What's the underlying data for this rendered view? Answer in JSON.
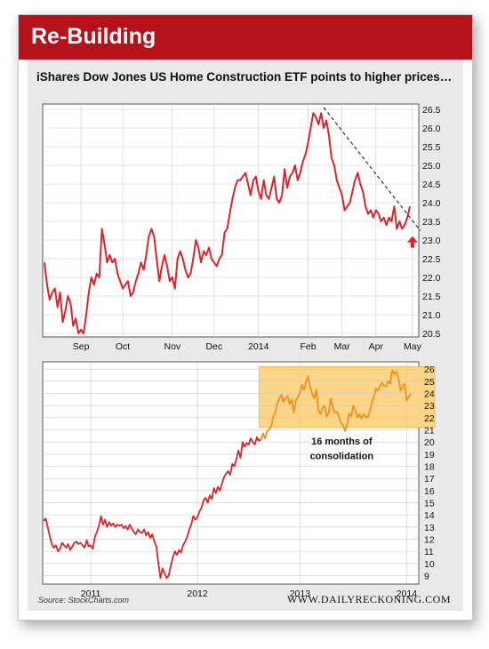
{
  "header": {
    "title": "Re-Building"
  },
  "subtitle": "iShares Dow Jones US Home Construction ETF points to higher prices…",
  "source": "Source: StockCharts.com",
  "site": "WWW.DAILYRECKONING.COM",
  "colors": {
    "header": "#b5121b",
    "line_top": "#e0222a",
    "line_bottom": "#e0222a",
    "line_highlight": "#f0901e",
    "highlight_fill": "#fcd587",
    "trend": "#1a3a5c",
    "arrow": "#e0222a"
  },
  "chart_data": [
    {
      "type": "line",
      "title": "",
      "ylim": [
        20.5,
        26.5
      ],
      "y_ticks": [
        "20.5",
        "21.0",
        "21.5",
        "22.0",
        "22.5",
        "23.0",
        "23.5",
        "24.0",
        "24.5",
        "25.0",
        "25.5",
        "26.0",
        "26.5"
      ],
      "x_tick_labels": [
        "Sep",
        "Oct",
        "Nov",
        "Dec",
        "2014",
        "Feb",
        "Mar",
        "Apr",
        "May"
      ],
      "grid": true,
      "series": [
        {
          "values": [
            22.4,
            21.8,
            21.4,
            21.6,
            21.7,
            21.2,
            21.6,
            20.8,
            21.1,
            21.5,
            21.3,
            20.7,
            20.9,
            20.5,
            20.6,
            20.5,
            21.0,
            21.6,
            22.0,
            21.8,
            22.1,
            22.0,
            23.3,
            22.9,
            22.4,
            22.6,
            22.4,
            22.5,
            22.1,
            21.9,
            21.7,
            21.8,
            21.9,
            21.5,
            21.6,
            21.9,
            22.1,
            22.4,
            22.2,
            22.6,
            23.1,
            23.3,
            23.1,
            22.5,
            21.9,
            22.3,
            22.6,
            22.3,
            21.9,
            22.0,
            21.7,
            22.5,
            22.7,
            22.5,
            22.2,
            22.0,
            22.1,
            22.5,
            23.0,
            22.8,
            22.4,
            22.7,
            22.6,
            22.8,
            22.5,
            22.4,
            22.3,
            22.5,
            22.6,
            23.2,
            23.3,
            23.7,
            24.1,
            24.4,
            24.6,
            24.6,
            24.7,
            24.8,
            24.5,
            24.2,
            24.6,
            24.7,
            24.3,
            24.1,
            24.6,
            24.2,
            24.1,
            24.4,
            24.7,
            24.1,
            24.0,
            24.2,
            24.9,
            24.4,
            24.7,
            24.8,
            25.0,
            24.6,
            24.8,
            25.1,
            25.3,
            25.6,
            26.0,
            26.4,
            26.3,
            26.1,
            26.4,
            26.0,
            26.2,
            25.8,
            25.2,
            25.0,
            24.6,
            24.4,
            24.2,
            23.8,
            23.9,
            24.0,
            24.3,
            24.6,
            24.8,
            24.5,
            24.3,
            23.9,
            23.7,
            23.8,
            23.6,
            23.8,
            23.7,
            23.5,
            23.6,
            23.4,
            23.6,
            23.5,
            23.9,
            23.3,
            23.5,
            23.3,
            23.4,
            23.6,
            23.9
          ]
        }
      ],
      "trendline": {
        "from": [
          107,
          26.55
        ],
        "to": [
          144,
          23.25
        ]
      },
      "annotation_arrow": {
        "x": 141,
        "y": 23.2
      }
    },
    {
      "type": "line",
      "ylim": [
        9,
        26
      ],
      "y_ticks": [
        "9",
        "10",
        "11",
        "12",
        "13",
        "14",
        "15",
        "16",
        "17",
        "18",
        "19",
        "20",
        "21",
        "22",
        "23",
        "24",
        "25",
        "26"
      ],
      "x_tick_labels": [
        "2011",
        "2012",
        "2013",
        "2014"
      ],
      "grid": true,
      "highlight_label": "16 months of consolidation",
      "highlight_label_lines": [
        "16 months of",
        "consolidation"
      ],
      "series": [
        {
          "values": [
            13.5,
            13.7,
            13.0,
            12.3,
            11.6,
            11.3,
            11.5,
            11.0,
            11.2,
            11.7,
            11.5,
            11.3,
            11.6,
            11.1,
            11.4,
            11.7,
            11.8,
            11.6,
            11.7,
            11.5,
            11.3,
            11.9,
            11.4,
            11.5,
            11.2,
            12.2,
            12.6,
            13.1,
            13.9,
            13.2,
            13.6,
            13.0,
            13.4,
            13.1,
            13.3,
            13.0,
            13.2,
            13.1,
            13.2,
            12.9,
            13.1,
            12.8,
            13.2,
            12.9,
            12.6,
            12.4,
            12.8,
            12.6,
            12.5,
            12.8,
            12.3,
            12.6,
            12.1,
            12.4,
            11.8,
            11.4,
            10.0,
            8.8,
            9.6,
            9.2,
            8.8,
            9.0,
            9.8,
            10.5,
            11.0,
            10.7,
            11.1,
            10.9,
            11.5,
            11.8,
            12.2,
            12.8,
            13.2,
            13.9,
            13.6,
            13.8,
            14.3,
            14.6,
            15.2,
            15.4,
            15.0,
            15.6,
            15.3,
            16.2,
            15.8,
            16.3,
            16.0,
            16.6,
            17.1,
            17.4,
            17.6,
            17.3,
            18.2,
            18.0,
            18.6,
            19.3,
            18.7,
            20.0,
            19.6,
            19.9,
            19.8,
            20.3,
            20.0,
            19.8,
            20.4,
            20.1,
            20.2,
            20.7,
            20.3,
            20.9,
            21.0,
            21.3,
            22.1,
            22.4,
            23.2,
            23.6,
            23.9,
            23.3,
            23.6,
            23.8,
            23.1,
            23.5,
            22.4,
            23.4,
            23.7,
            24.1,
            24.7,
            24.3,
            25.0,
            25.4,
            24.5,
            23.9,
            23.6,
            24.3,
            22.6,
            22.3,
            22.8,
            23.0,
            22.1,
            22.4,
            23.6,
            22.9,
            22.4,
            22.5,
            22.1,
            21.6,
            21.4,
            20.9,
            21.5,
            22.3,
            22.1,
            23.0,
            22.6,
            22.0,
            22.3,
            21.9,
            22.3,
            22.1,
            22.0,
            22.5,
            23.2,
            23.7,
            24.4,
            24.2,
            24.6,
            24.9,
            24.6,
            24.6,
            25.0,
            24.8,
            25.9,
            25.6,
            25.8,
            25.3,
            24.2,
            24.6,
            24.8,
            23.4,
            23.7,
            24.0
          ]
        }
      ],
      "highlight_range_index": [
        106,
        189
      ],
      "highlight_range_y": [
        21.2,
        26.2
      ]
    }
  ]
}
